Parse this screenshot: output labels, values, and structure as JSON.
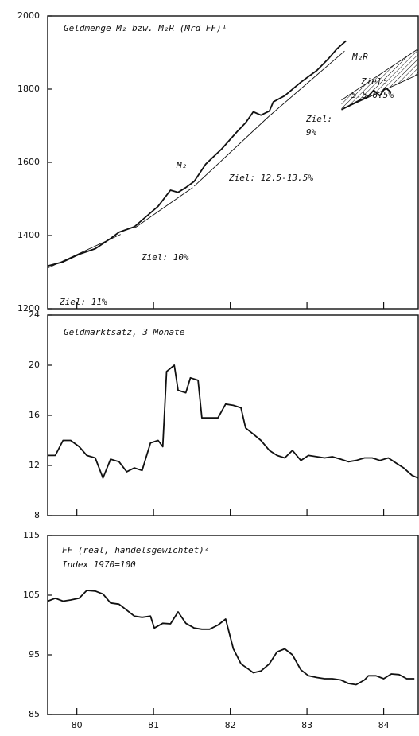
{
  "chart_data": [
    {
      "type": "line",
      "title": "Geldmenge M₂ bzw. M₂R (Mrd FF)¹",
      "xlim": [
        79.62,
        84.45
      ],
      "ylim": [
        1200,
        2000
      ],
      "yticks": [
        1200,
        1400,
        1600,
        1800,
        2000
      ],
      "series": [
        {
          "name": "M₂",
          "color": "#111111",
          "x": [
            79.62,
            79.82,
            80.03,
            80.24,
            80.44,
            80.55,
            80.75,
            80.96,
            81.06,
            81.22,
            81.32,
            81.42,
            81.53,
            81.68,
            81.89,
            82.09,
            82.2,
            82.3,
            82.4,
            82.51,
            82.56,
            82.71,
            82.92,
            83.13,
            83.28,
            83.39,
            83.51
          ],
          "values": [
            1317,
            1328,
            1349,
            1364,
            1392,
            1409,
            1424,
            1462,
            1480,
            1524,
            1518,
            1531,
            1548,
            1595,
            1637,
            1684,
            1708,
            1738,
            1729,
            1740,
            1765,
            1782,
            1819,
            1851,
            1883,
            1910,
            1932
          ]
        },
        {
          "name": "M₂R",
          "color": "#111111",
          "x": [
            83.45,
            83.59,
            83.69,
            83.79,
            83.87,
            83.95,
            84.02,
            84.1
          ],
          "values": [
            1744,
            1759,
            1770,
            1778,
            1797,
            1782,
            1804,
            1791
          ]
        }
      ],
      "targets": [
        {
          "label": "Ziel: 11%",
          "x": [
            79.62,
            80.57
          ],
          "values": [
            1311,
            1403
          ]
        },
        {
          "label": "Ziel: 10%",
          "x": [
            80.75,
            81.51
          ],
          "values": [
            1420,
            1531
          ]
        },
        {
          "label": "Ziel: 12.5-13.5%",
          "x": [
            81.53,
            82.5
          ],
          "values": [
            1535,
            1725
          ]
        },
        {
          "label": [
            "Ziel:",
            "9%"
          ],
          "x": [
            82.5,
            83.49
          ],
          "values": [
            1725,
            1904
          ]
        },
        {
          "label": [
            "Ziel:",
            "5.5-6.5%"
          ],
          "x": [
            83.45,
            84.45
          ],
          "low": [
            1744,
            1840
          ],
          "high": [
            1770,
            1910
          ]
        }
      ]
    },
    {
      "type": "line",
      "title": "Geldmarktsatz, 3 Monate",
      "xlim": [
        79.62,
        84.45
      ],
      "ylim": [
        8,
        24
      ],
      "yticks": [
        8,
        12,
        16,
        20,
        24
      ],
      "series": [
        {
          "color": "#111111",
          "x": [
            79.62,
            79.72,
            79.82,
            79.92,
            80.03,
            80.13,
            80.24,
            80.34,
            80.44,
            80.55,
            80.65,
            80.75,
            80.85,
            80.96,
            81.06,
            81.12,
            81.17,
            81.27,
            81.32,
            81.42,
            81.48,
            81.58,
            81.63,
            81.73,
            81.84,
            81.94,
            82.04,
            82.14,
            82.2,
            82.3,
            82.4,
            82.51,
            82.61,
            82.71,
            82.81,
            82.92,
            83.02,
            83.13,
            83.23,
            83.33,
            83.44,
            83.54,
            83.64,
            83.75,
            83.85,
            83.95,
            84.06,
            84.16,
            84.26,
            84.37,
            84.45
          ],
          "values": [
            12.8,
            12.8,
            14,
            14,
            13.5,
            12.8,
            12.6,
            11,
            12.5,
            12.3,
            11.5,
            11.8,
            11.6,
            13.8,
            14,
            13.5,
            19.5,
            20,
            18,
            17.8,
            19,
            18.8,
            15.8,
            15.8,
            15.8,
            16.9,
            16.8,
            16.6,
            15,
            14.5,
            14,
            13.2,
            12.8,
            12.6,
            13.2,
            12.4,
            12.8,
            12.7,
            12.6,
            12.7,
            12.5,
            12.3,
            12.4,
            12.6,
            12.6,
            12.4,
            12.6,
            12.2,
            11.8,
            11.2,
            11
          ]
        }
      ]
    },
    {
      "type": "line",
      "title": "FF (real, handelsgewichtet)²",
      "subtitle": "Index 1970=100",
      "xlim": [
        79.62,
        84.45
      ],
      "xticks": [
        80,
        81,
        82,
        83,
        84
      ],
      "ylim": [
        85,
        115
      ],
      "yticks": [
        85,
        95,
        105,
        115
      ],
      "series": [
        {
          "color": "#111111",
          "x": [
            79.62,
            79.72,
            79.82,
            79.92,
            80.03,
            80.13,
            80.24,
            80.34,
            80.44,
            80.55,
            80.65,
            80.75,
            80.85,
            80.96,
            81.01,
            81.12,
            81.22,
            81.32,
            81.42,
            81.53,
            81.63,
            81.73,
            81.84,
            81.94,
            82.04,
            82.14,
            82.25,
            82.3,
            82.4,
            82.51,
            82.61,
            82.71,
            82.81,
            82.92,
            83.02,
            83.13,
            83.23,
            83.33,
            83.44,
            83.54,
            83.64,
            83.75,
            83.8,
            83.9,
            84.0,
            84.1,
            84.2,
            84.3,
            84.4
          ],
          "values": [
            104,
            104.5,
            104,
            104.2,
            104.5,
            105.8,
            105.7,
            105.2,
            103.7,
            103.5,
            102.5,
            101.5,
            101.3,
            101.5,
            99.5,
            100.3,
            100.2,
            102.2,
            100.3,
            99.5,
            99.3,
            99.3,
            100,
            101,
            96,
            93.5,
            92.5,
            92,
            92.3,
            93.5,
            95.5,
            96,
            95,
            92.5,
            91.5,
            91.2,
            91,
            91,
            90.8,
            90.2,
            90,
            90.8,
            91.5,
            91.5,
            91,
            91.8,
            91.7,
            91,
            91
          ]
        }
      ]
    }
  ]
}
